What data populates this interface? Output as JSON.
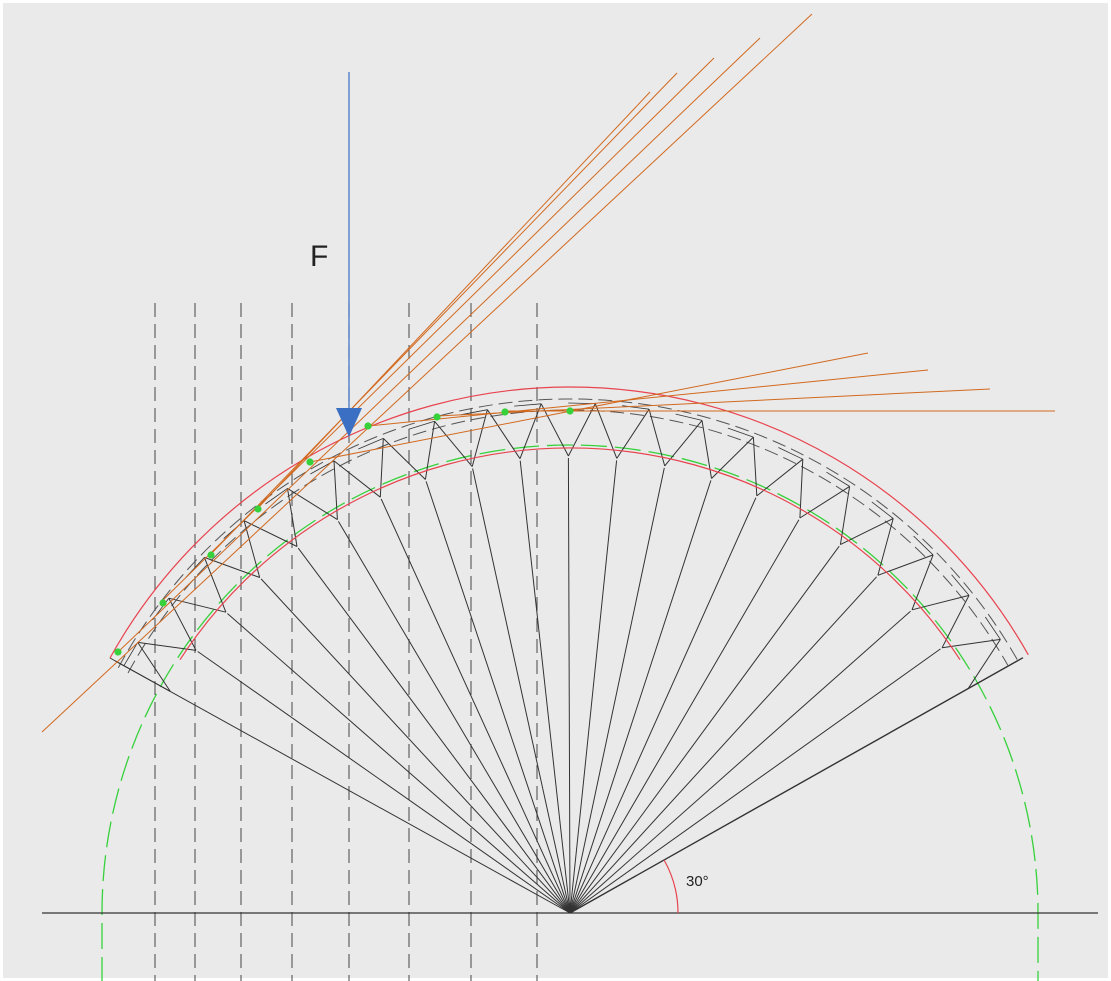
{
  "diagram": {
    "force_label": "F",
    "angle_label": "30°"
  },
  "colors": {
    "background": "#eaeaea",
    "frame": "#ffffff",
    "structure": "#333333",
    "dashed": "#555555",
    "arc": "#e8434e",
    "construction": "#d2691e",
    "force": "#3a6fc4",
    "circle": "#37d13c",
    "nodes": "#37d13c"
  }
}
